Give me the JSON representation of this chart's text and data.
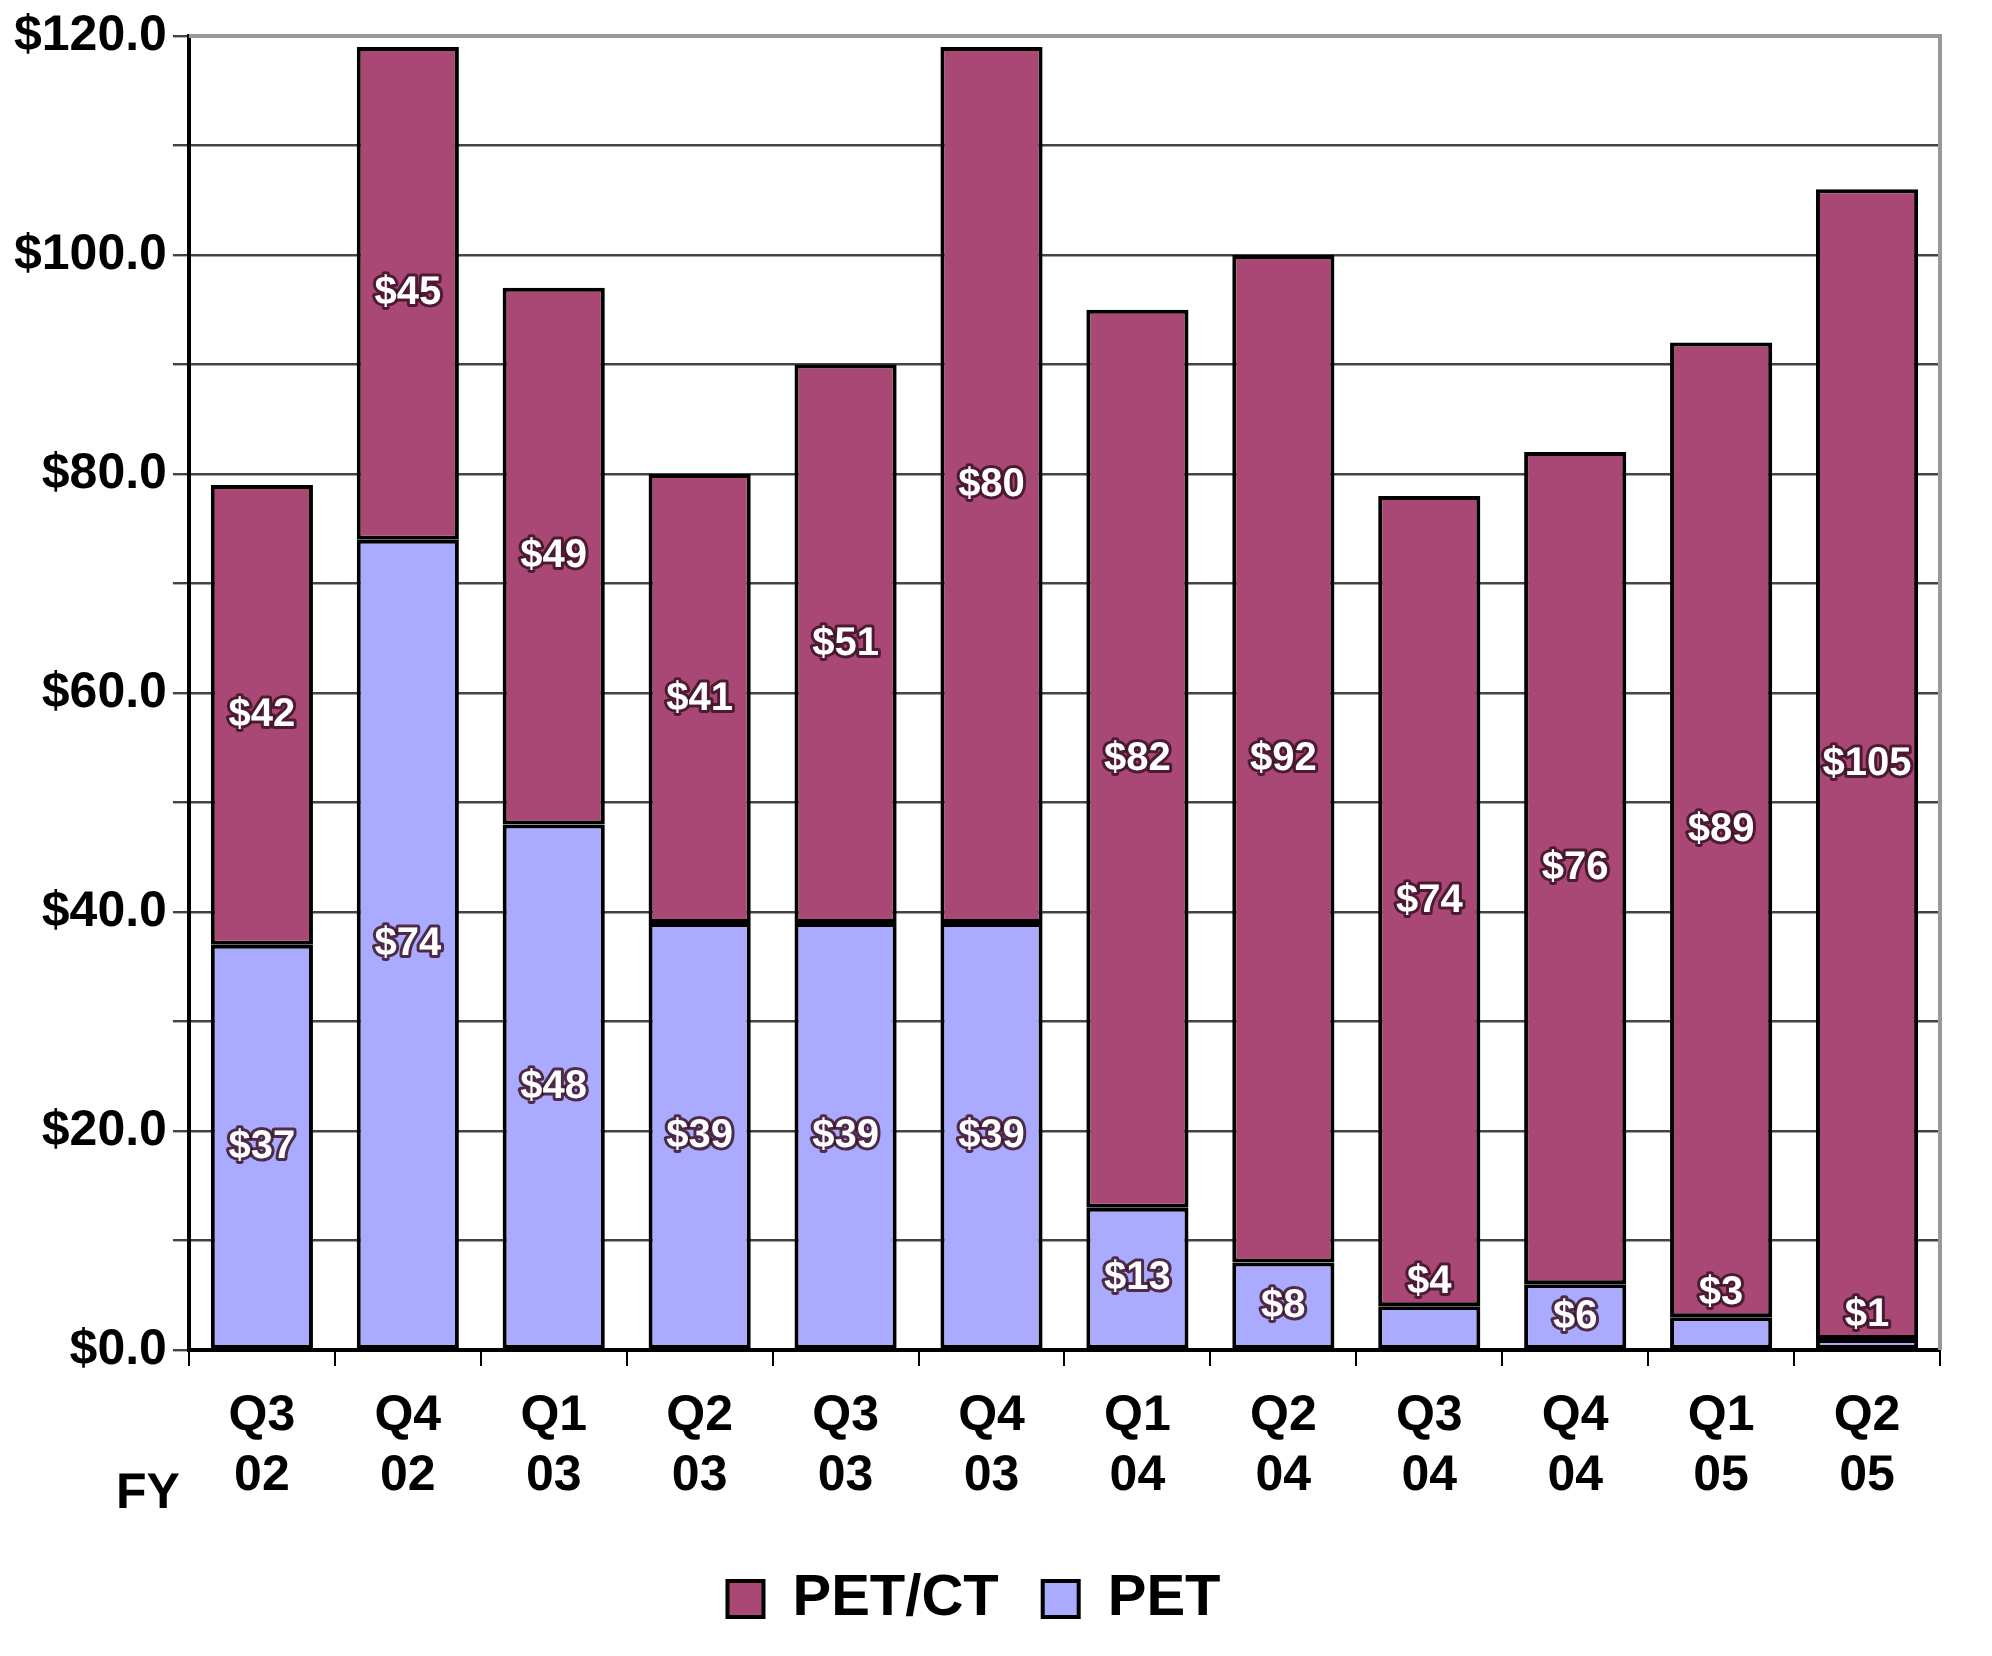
{
  "chart_data": {
    "type": "bar",
    "stacked": true,
    "xlabel": "FY",
    "categories": [
      "Q3 02",
      "Q4 02",
      "Q1 03",
      "Q2 03",
      "Q3 03",
      "Q4 03",
      "Q1 04",
      "Q2 04",
      "Q3 04",
      "Q4 04",
      "Q1 05",
      "Q2 05"
    ],
    "series": [
      {
        "name": "PET",
        "color": "#aaaaff",
        "values": [
          37,
          74,
          48,
          39,
          39,
          39,
          13,
          8,
          4,
          6,
          3,
          1
        ],
        "value_labels": [
          "$37",
          "$74",
          "$48",
          "$39",
          "$39",
          "$39",
          "$13",
          "$8",
          "$4",
          "$6",
          "$3",
          "$1"
        ]
      },
      {
        "name": "PET/CT",
        "color": "#a94874",
        "values": [
          42,
          45,
          49,
          41,
          51,
          80,
          82,
          92,
          74,
          76,
          89,
          105
        ],
        "value_labels": [
          "$42",
          "$45",
          "$49",
          "$41",
          "$51",
          "$80",
          "$82",
          "$92",
          "$74",
          "$76",
          "$89",
          "$105"
        ]
      }
    ],
    "ylim": [
      0,
      120
    ],
    "yticks": [
      {
        "value": 0,
        "label": "$0.0"
      },
      {
        "value": 10,
        "label": null
      },
      {
        "value": 20,
        "label": "$20.0"
      },
      {
        "value": 30,
        "label": null
      },
      {
        "value": 40,
        "label": "$40.0"
      },
      {
        "value": 50,
        "label": null
      },
      {
        "value": 60,
        "label": "$60.0"
      },
      {
        "value": 70,
        "label": null
      },
      {
        "value": 80,
        "label": "$80.0"
      },
      {
        "value": 90,
        "label": null
      },
      {
        "value": 100,
        "label": "$100.0"
      },
      {
        "value": 110,
        "label": null
      },
      {
        "value": 120,
        "label": "$120.0"
      }
    ],
    "grid": "y",
    "legend": "bottom"
  }
}
